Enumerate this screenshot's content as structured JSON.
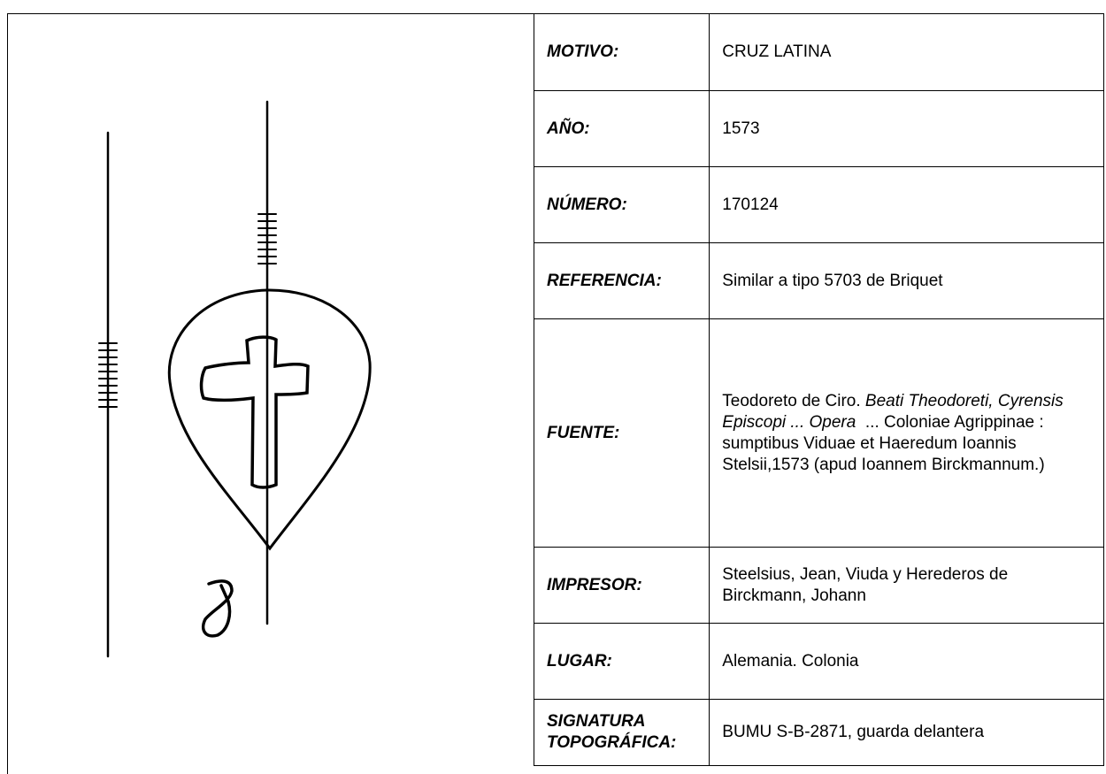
{
  "table": {
    "rows": [
      {
        "label": "MOTIVO:",
        "value": "CRUZ LATINA"
      },
      {
        "label": "AÑO:",
        "value": "1573"
      },
      {
        "label": "NÚMERO:",
        "value": "170124"
      },
      {
        "label": "REFERENCIA:",
        "value": "Similar a tipo 5703 de Briquet"
      },
      {
        "label": "FUENTE:",
        "segments": [
          {
            "text": "Teodoreto de Ciro. ",
            "italic": false
          },
          {
            "text": "Beati Theodoreti, Cyrensis Episcopi ... Opera",
            "italic": true
          },
          {
            "text": "  ... Coloniae Agrippinae : sumptibus Viduae et Haeredum Ioannis Stelsii,1573 (apud Ioannem Birckmannum.)",
            "italic": false
          }
        ]
      },
      {
        "label": "IMPRESOR:",
        "value": "Steelsius, Jean, Viuda y Herederos de Birckmann, Johann"
      },
      {
        "label": "LUGAR:",
        "value": "Alemania. Colonia"
      },
      {
        "label": "SIGNATURA TOPOGRÁFICA:",
        "value": "BUMU S-B-2871, guarda delantera"
      }
    ]
  }
}
